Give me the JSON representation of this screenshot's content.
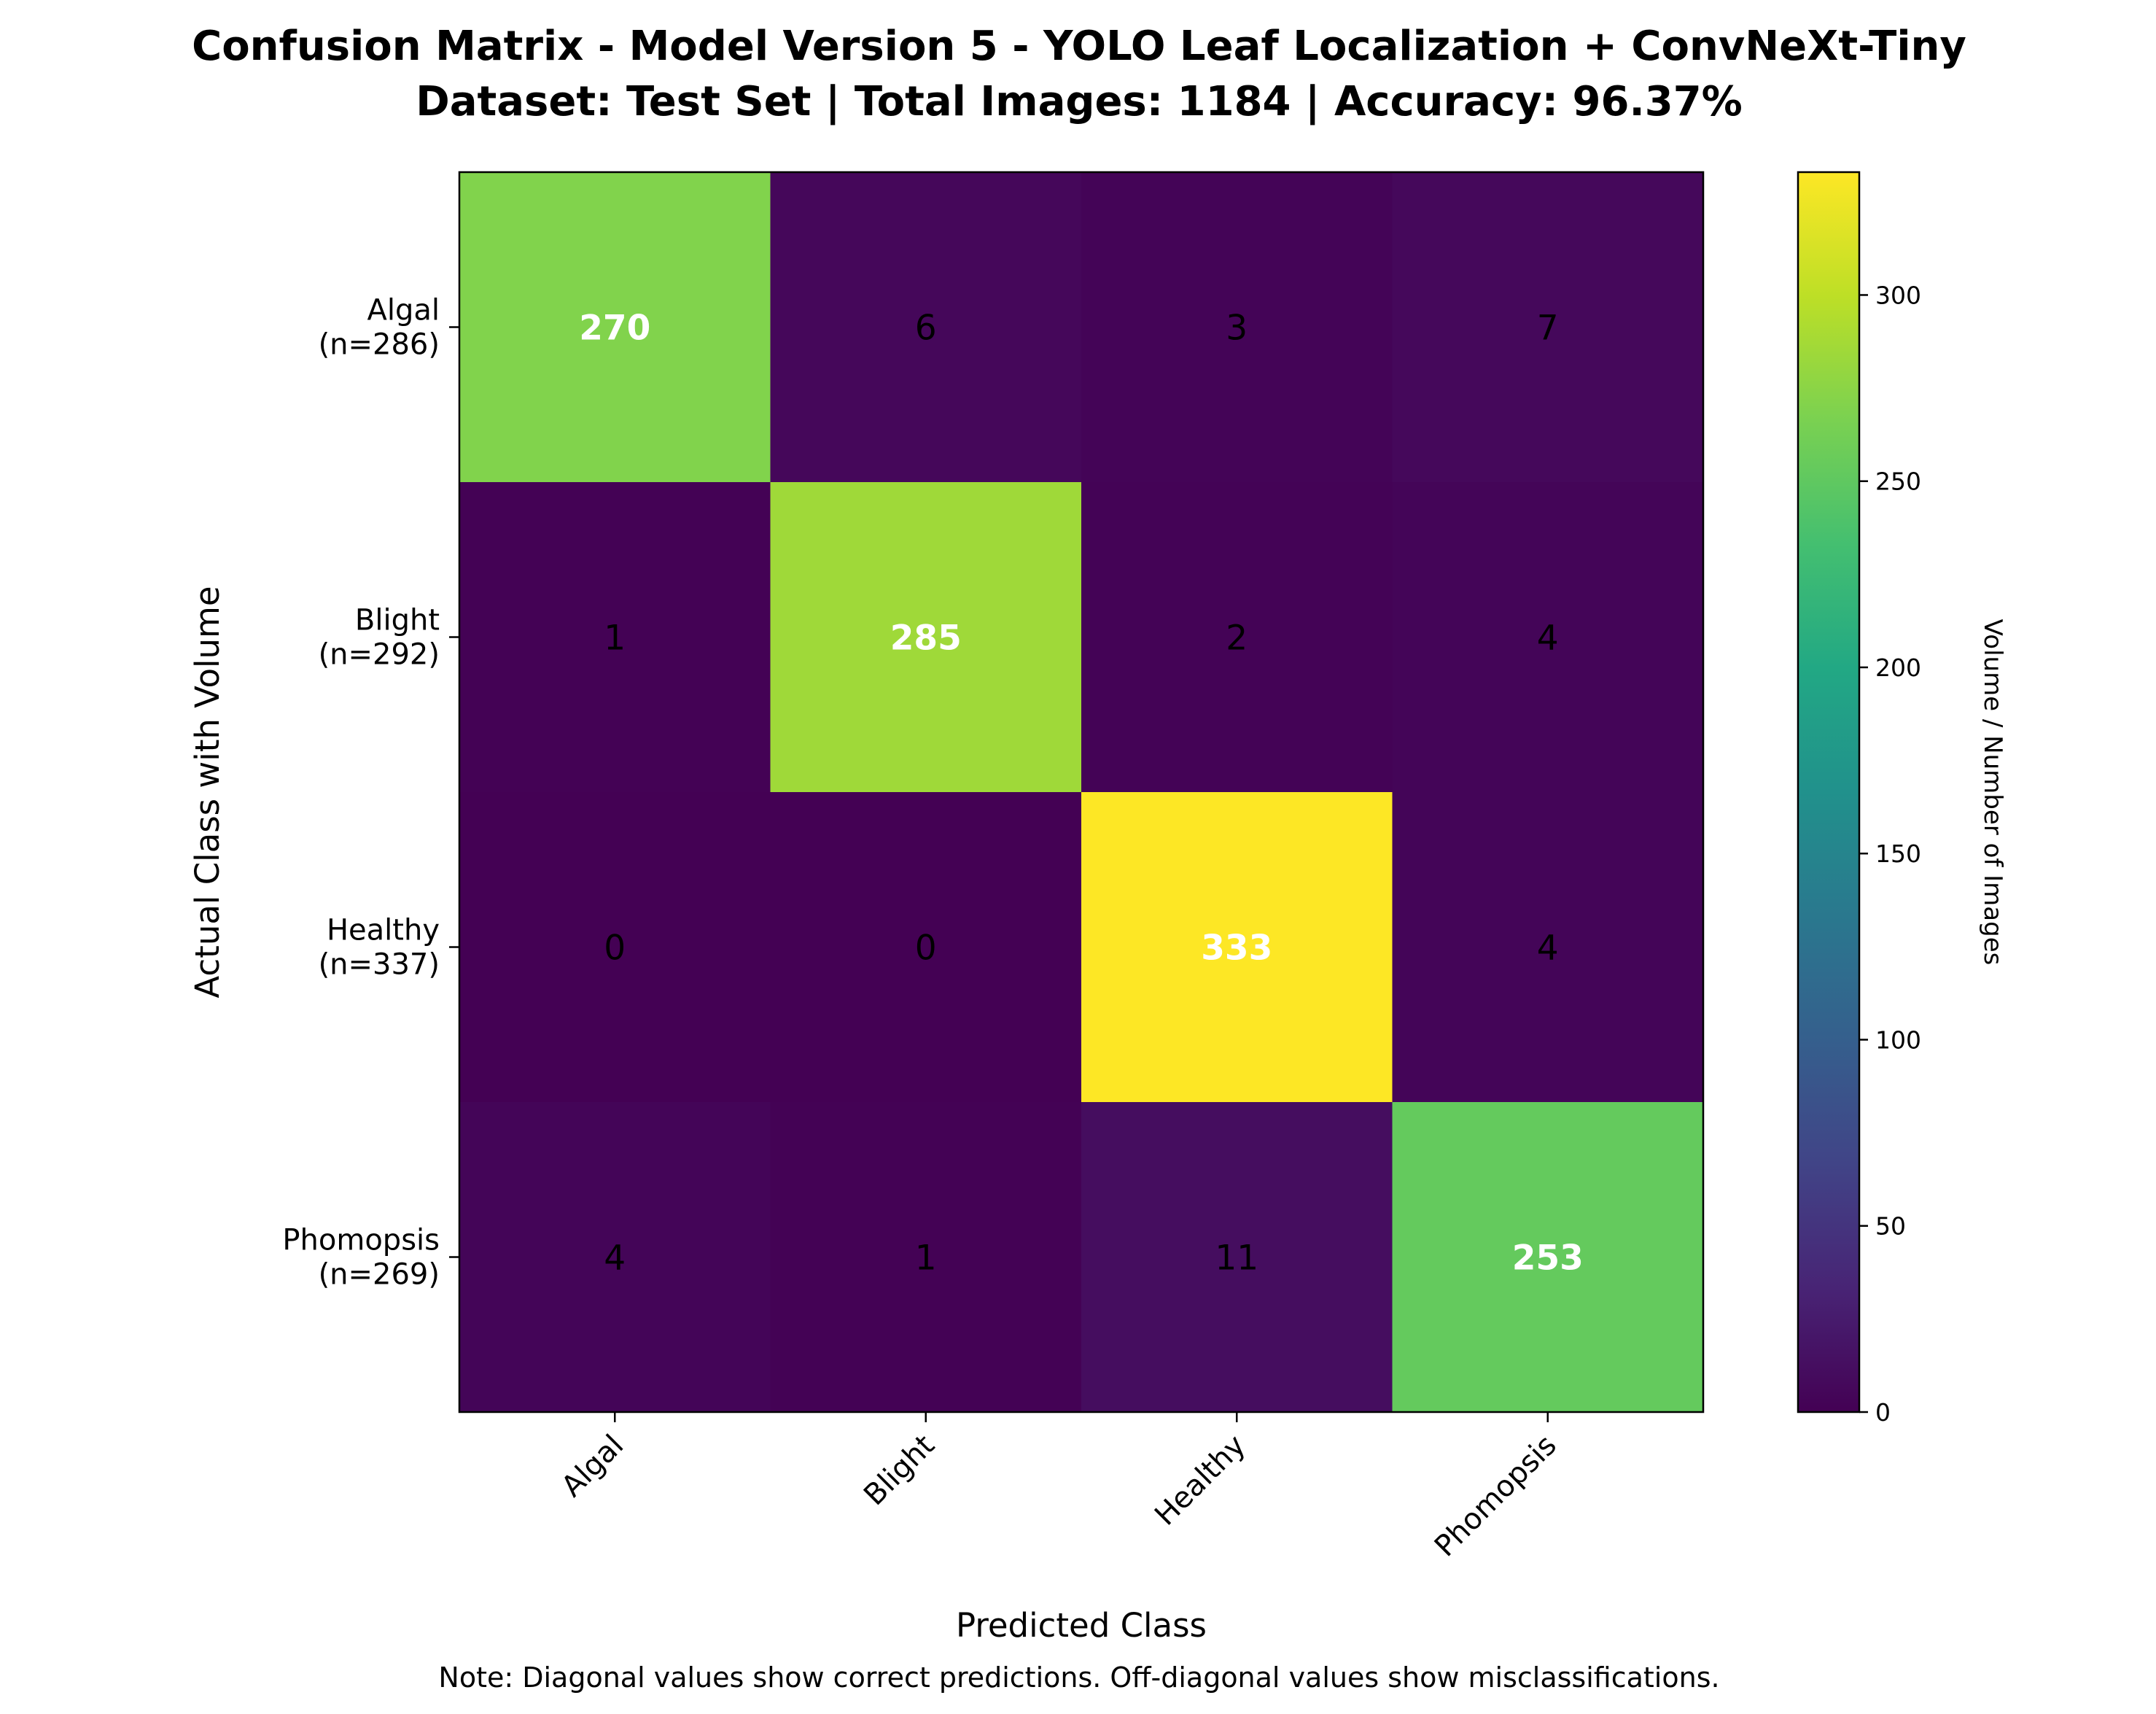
{
  "chart_data": {
    "type": "heatmap",
    "title": "Confusion Matrix - Model Version 5 - YOLO Leaf Localization + ConvNeXt-Tiny",
    "subtitle": "Dataset: Test Set | Total Images: 1184 | Accuracy: 96.37%",
    "xlabel": "Predicted Class",
    "ylabel": "Actual Class with Volume",
    "x_categories": [
      "Algal",
      "Blight",
      "Healthy",
      "Phomopsis"
    ],
    "y_categories": [
      [
        "Algal",
        "(n=286)"
      ],
      [
        "Blight",
        "(n=292)"
      ],
      [
        "Healthy",
        "(n=337)"
      ],
      [
        "Phomopsis",
        "(n=269)"
      ]
    ],
    "values": [
      [
        270,
        6,
        3,
        7
      ],
      [
        1,
        285,
        2,
        4
      ],
      [
        0,
        0,
        333,
        4
      ],
      [
        4,
        1,
        11,
        253
      ]
    ],
    "colormap": "viridis",
    "vmin": 0,
    "vmax": 333,
    "colorbar": {
      "label": "Volume / Number of Images",
      "ticks": [
        0,
        50,
        100,
        150,
        200,
        250,
        300
      ]
    },
    "note": "Note: Diagonal values show correct predictions. Off-diagonal values show misclassifications."
  }
}
